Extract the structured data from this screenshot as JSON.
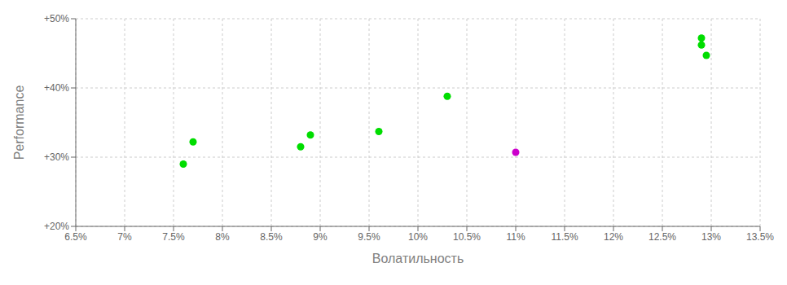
{
  "chart_data": {
    "type": "scatter",
    "xlabel": "Волатильность",
    "ylabel": "Performance",
    "xlim": [
      0.065,
      0.135
    ],
    "ylim": [
      0.2,
      0.5
    ],
    "xticks": [
      {
        "value": 0.065,
        "label": "6.5%"
      },
      {
        "value": 0.07,
        "label": "7%"
      },
      {
        "value": 0.075,
        "label": "7.5%"
      },
      {
        "value": 0.08,
        "label": "8%"
      },
      {
        "value": 0.085,
        "label": "8.5%"
      },
      {
        "value": 0.09,
        "label": "9%"
      },
      {
        "value": 0.095,
        "label": "9.5%"
      },
      {
        "value": 0.1,
        "label": "10%"
      },
      {
        "value": 0.105,
        "label": "10.5%"
      },
      {
        "value": 0.11,
        "label": "11%"
      },
      {
        "value": 0.115,
        "label": "11.5%"
      },
      {
        "value": 0.12,
        "label": "12%"
      },
      {
        "value": 0.125,
        "label": "12.5%"
      },
      {
        "value": 0.13,
        "label": "13%"
      },
      {
        "value": 0.135,
        "label": "13.5%"
      }
    ],
    "yticks": [
      {
        "value": 0.2,
        "label": "+20%"
      },
      {
        "value": 0.3,
        "label": "+30%"
      },
      {
        "value": 0.4,
        "label": "+40%"
      },
      {
        "value": 0.5,
        "label": "+50%"
      }
    ],
    "grid": true,
    "series": [
      {
        "color": "#00dd00",
        "x": [
          0.077,
          0.076,
          0.089,
          0.088,
          0.096,
          0.103,
          0.129,
          0.129,
          0.1295
        ],
        "values": [
          0.322,
          0.29,
          0.332,
          0.315,
          0.337,
          0.388,
          0.472,
          0.462,
          0.447
        ]
      },
      {
        "color": "#cc00cc",
        "x": [
          0.11
        ],
        "values": [
          0.307
        ]
      }
    ]
  }
}
